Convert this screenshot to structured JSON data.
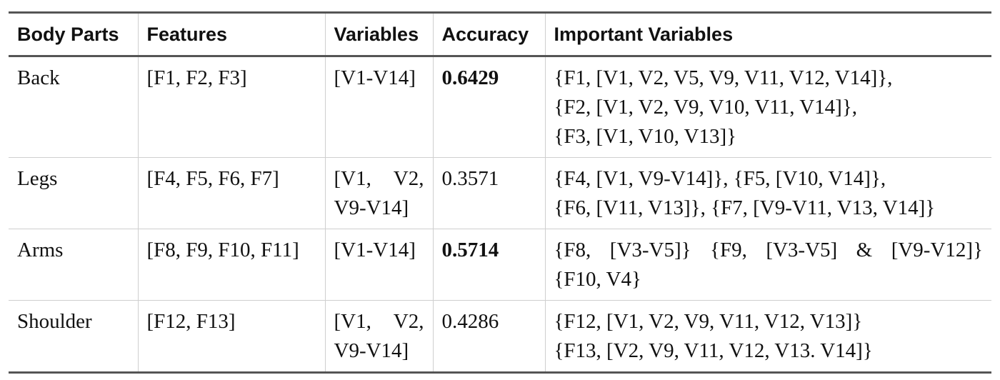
{
  "table": {
    "headers": [
      "Body Parts",
      "Features",
      "Variables",
      "Accuracy",
      "Important Variables"
    ],
    "rows": [
      {
        "body_part": "Back",
        "features": "[F1, F2, F3]",
        "variables": [
          "[V1-V14]"
        ],
        "accuracy": "0.6429",
        "accuracy_bold": true,
        "important_variables": [
          "{F1, [V1, V2, V5, V9, V11, V12, V14]},",
          "{F2, [V1, V2, V9, V10, V11, V14]},",
          "{F3, [V1, V10, V13]}"
        ]
      },
      {
        "body_part": "Legs",
        "features": "[F4, F5, F6, F7]",
        "variables": [
          "[V1, V2,",
          "V9-V14]"
        ],
        "accuracy": "0.3571",
        "accuracy_bold": false,
        "important_variables": [
          "{F4, [V1, V9-V14]}, {F5, [V10, V14]},",
          "{F6, [V11, V13]}, {F7, [V9-V11, V13, V14]}"
        ]
      },
      {
        "body_part": "Arms",
        "features": "[F8, F9, F10, F11]",
        "variables": [
          "[V1-V14]"
        ],
        "accuracy": "0.5714",
        "accuracy_bold": true,
        "important_variables": [
          "{F8, [V3-V5]} {F9, [V3-V5] & [V9-V12]}",
          "{F10, V4}"
        ]
      },
      {
        "body_part": "Shoulder",
        "features": "[F12, F13]",
        "variables": [
          "[V1, V2,",
          "V9-V14]"
        ],
        "accuracy": "0.4286",
        "accuracy_bold": false,
        "important_variables": [
          "{F12, [V1, V2, V9, V11, V12, V13]}",
          "{F13, [V2, V9, V11, V12, V13. V14]}"
        ]
      }
    ]
  }
}
